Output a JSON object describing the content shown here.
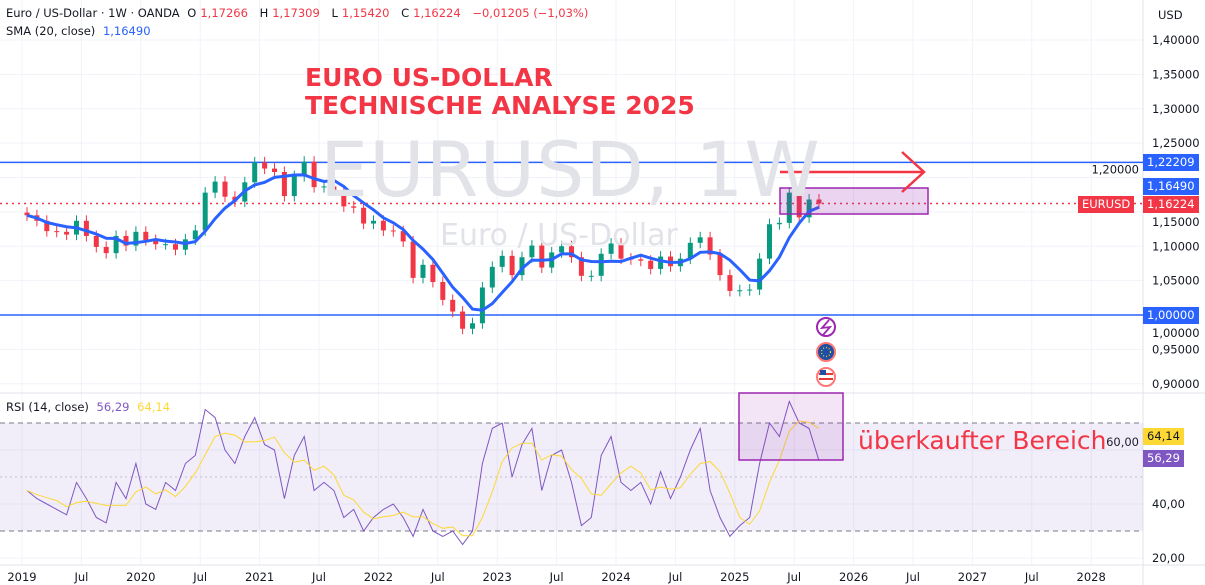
{
  "legend": {
    "symbol": "Euro / US-Dollar · 1W · OANDA",
    "o_label": "O",
    "o": "1,17266",
    "h_label": "H",
    "h": "1,17309",
    "l_label": "L",
    "l": "1,15420",
    "c_label": "C",
    "c": "1,16224",
    "change": "−0,01205 (−1,03%)",
    "sma_label": "SMA (20, close)",
    "sma_value": "1,16490",
    "rsi_label": "RSI (14, close)",
    "rsi_value": "56,29",
    "rsi_ma_value": "64,14"
  },
  "currency": "USD",
  "watermark": {
    "symbol": "EURUSD, 1W",
    "name": "Euro / US-Dollar"
  },
  "annotations": {
    "title_line1": "EURO US-DOLLAR",
    "title_line2": "TECHNISCHE ANALYSE 2025",
    "overbought": "überkaufter Bereich"
  },
  "price_tags": {
    "resistance": "1,22209",
    "sma": "1,16490",
    "symbol": "EURUSD",
    "last": "1,16224",
    "support": "1,00000",
    "rsi_ma": "64,14",
    "rsi": "56,29"
  },
  "colors": {
    "up": "#089981",
    "down": "#f23645",
    "sma": "#2962ff",
    "rsi": "#7e57c2",
    "rsi_ma": "#fdd835",
    "level": "#2962ff",
    "box": "#9c27b0"
  },
  "icons": [
    "lightning-event-icon",
    "eu-flag-icon",
    "us-flag-icon"
  ],
  "chart_data": {
    "type": "candlestick",
    "start": "2019-01",
    "interval": "1M (approximation of 1W chart)",
    "close": [
      1.145,
      1.137,
      1.122,
      1.121,
      1.117,
      1.137,
      1.115,
      1.099,
      1.09,
      1.115,
      1.101,
      1.121,
      1.109,
      1.103,
      1.103,
      1.095,
      1.11,
      1.123,
      1.178,
      1.194,
      1.172,
      1.165,
      1.193,
      1.222,
      1.213,
      1.208,
      1.173,
      1.202,
      1.223,
      1.186,
      1.187,
      1.181,
      1.158,
      1.156,
      1.133,
      1.137,
      1.123,
      1.122,
      1.107,
      1.054,
      1.073,
      1.048,
      1.022,
      1.005,
      0.98,
      0.988,
      1.04,
      1.07,
      1.086,
      1.058,
      1.084,
      1.101,
      1.069,
      1.091,
      1.1,
      1.084,
      1.057,
      1.057,
      1.089,
      1.104,
      1.082,
      1.081,
      1.079,
      1.067,
      1.085,
      1.071,
      1.082,
      1.105,
      1.113,
      1.088,
      1.058,
      1.035,
      1.036,
      1.037,
      1.082,
      1.132,
      1.134,
      1.178,
      1.142,
      1.168,
      1.162
    ],
    "rsi": [
      45,
      42,
      40,
      38,
      36,
      48,
      42,
      35,
      33,
      48,
      42,
      55,
      40,
      38,
      48,
      45,
      55,
      58,
      75,
      72,
      60,
      55,
      65,
      72,
      62,
      60,
      42,
      58,
      65,
      45,
      48,
      45,
      35,
      38,
      30,
      35,
      38,
      40,
      35,
      28,
      38,
      30,
      28,
      30,
      25,
      30,
      55,
      68,
      70,
      50,
      62,
      68,
      45,
      58,
      60,
      48,
      32,
      35,
      58,
      65,
      48,
      45,
      48,
      40,
      52,
      42,
      50,
      60,
      68,
      45,
      35,
      28,
      32,
      35,
      55,
      70,
      65,
      78,
      70,
      68,
      56
    ],
    "levels": [
      1.22209,
      1.0
    ],
    "last_price": 1.16224,
    "y_ticks": [
      "1,40000",
      "1,35000",
      "1,30000",
      "1,25000",
      "1,20000",
      "1,15000",
      "1,10000",
      "1,05000",
      "1,00000",
      "0,95000",
      "0,90000"
    ],
    "y_tick_values": [
      1.4,
      1.35,
      1.3,
      1.25,
      1.2,
      1.15,
      1.1,
      1.05,
      1.0,
      0.95,
      0.9
    ],
    "rsi_ticks": [
      "60,00",
      "40,00",
      "20,00"
    ],
    "rsi_tick_values": [
      60,
      40,
      20
    ],
    "rsi_bands": [
      70,
      30
    ],
    "x_ticks": [
      "2019",
      "Jul",
      "2020",
      "Jul",
      "2021",
      "Jul",
      "2022",
      "Jul",
      "2023",
      "Jul",
      "2024",
      "Jul",
      "2025",
      "Jul",
      "2026",
      "Jul",
      "2027",
      "Jul",
      "2028"
    ],
    "ylim": [
      0.88,
      1.42
    ]
  }
}
